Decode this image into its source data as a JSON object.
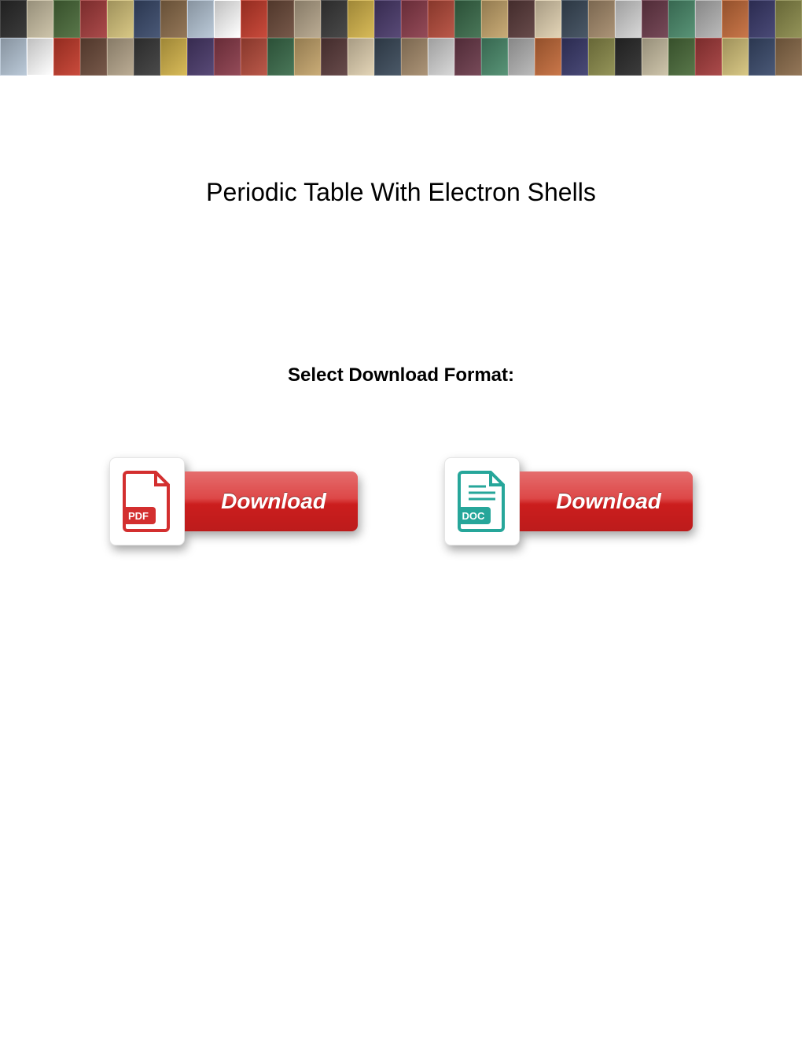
{
  "collage": {
    "rows": 2,
    "cols": 30,
    "tile_colors": [
      "#2b2b2b",
      "#c9bfa3",
      "#4a6b3a",
      "#a33b3b",
      "#d4c27a",
      "#3a4a6b",
      "#8a6b4a",
      "#b4c4d4",
      "#ffffff",
      "#c43b2b",
      "#6b4a3a",
      "#b4a48a",
      "#3a3a3a",
      "#d4b44a",
      "#4a3a6b",
      "#8a3b4a",
      "#b44a3a",
      "#3a6b4a",
      "#c4a46b",
      "#5a3b3b",
      "#e0d0b0",
      "#3b4a5a",
      "#a48a6b",
      "#d4d4d4",
      "#6b3a4a",
      "#4a8a6b",
      "#b4b4b4",
      "#c46b3a",
      "#3a3a6b",
      "#8a8a4a"
    ]
  },
  "page": {
    "title": "Periodic Table With Electron Shells",
    "subtitle": "Select Download Format:",
    "title_fontsize": 32,
    "subtitle_fontsize": 24,
    "background_color": "#ffffff",
    "text_color": "#000000"
  },
  "downloads": {
    "button_bg": "#d61f1f",
    "button_text_color": "#ffffff",
    "pdf": {
      "label": "Download",
      "badge": "PDF",
      "icon_color": "#d32f2f",
      "icon_name": "pdf-file-icon"
    },
    "doc": {
      "label": "Download",
      "badge": "DOC",
      "icon_color": "#26a69a",
      "icon_name": "doc-file-icon"
    }
  }
}
